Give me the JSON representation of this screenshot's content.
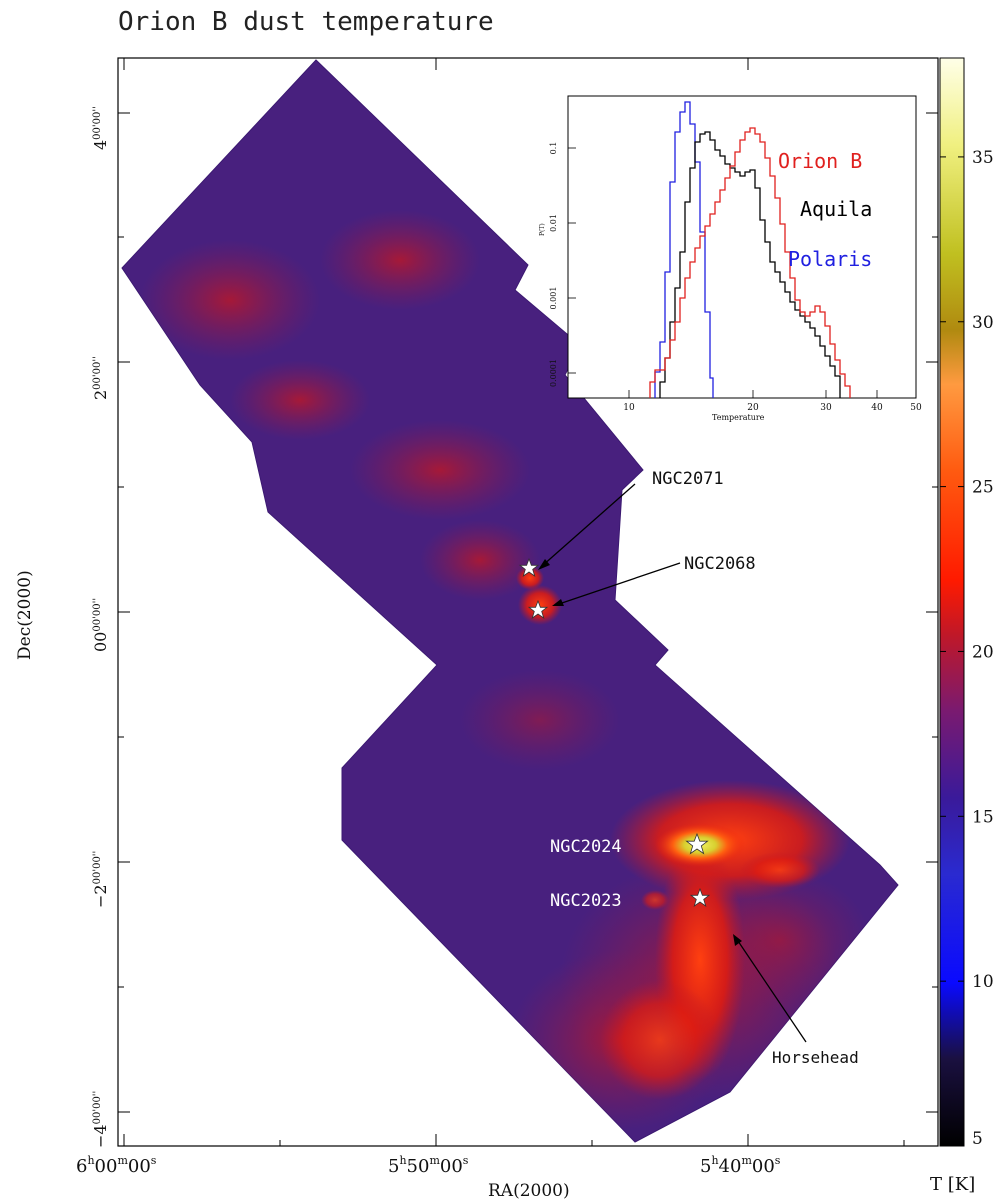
{
  "title": "Orion B dust temperature",
  "axes": {
    "xlabel": "RA(2000)",
    "ylabel": "Dec(2000)",
    "x_ticks": [
      {
        "h": "6",
        "m": "00",
        "s": "00"
      },
      {
        "h": "5",
        "m": "50",
        "s": "00"
      },
      {
        "h": "5",
        "m": "40",
        "s": "00"
      }
    ],
    "y_ticks": [
      {
        "d": "4",
        "m": "00",
        "s": "00"
      },
      {
        "d": "2",
        "m": "00",
        "s": "00"
      },
      {
        "d": "00",
        "m": "00",
        "s": "00"
      },
      {
        "d": "−2",
        "m": "00",
        "s": "00"
      },
      {
        "d": "−4",
        "m": "00",
        "s": "00"
      }
    ]
  },
  "colorbar": {
    "label": "T [K]",
    "ticks": [
      "5",
      "10",
      "15",
      "20",
      "25",
      "30",
      "35"
    ],
    "range": [
      5,
      38
    ]
  },
  "annotations": [
    {
      "label": "NGC2071"
    },
    {
      "label": "NGC2068"
    },
    {
      "label": "NGC2024"
    },
    {
      "label": "NGC2023"
    },
    {
      "label": "Horsehead"
    }
  ],
  "inset": {
    "xlabel": "Temperature",
    "ylabel": "P(T)",
    "x_ticks": [
      "10",
      "20",
      "30",
      "40",
      "50"
    ],
    "y_ticks": [
      "0.1",
      "0.01",
      "0.001",
      "0.0001"
    ],
    "legend": [
      {
        "name": "Orion B",
        "color": "#e0201e"
      },
      {
        "name": "Aquila",
        "color": "#000000"
      },
      {
        "name": "Polaris",
        "color": "#2020e0"
      }
    ]
  },
  "colors": {
    "background_cold": "#3a1a7a",
    "warm": "#e8200e",
    "hot": "#e8e040"
  }
}
